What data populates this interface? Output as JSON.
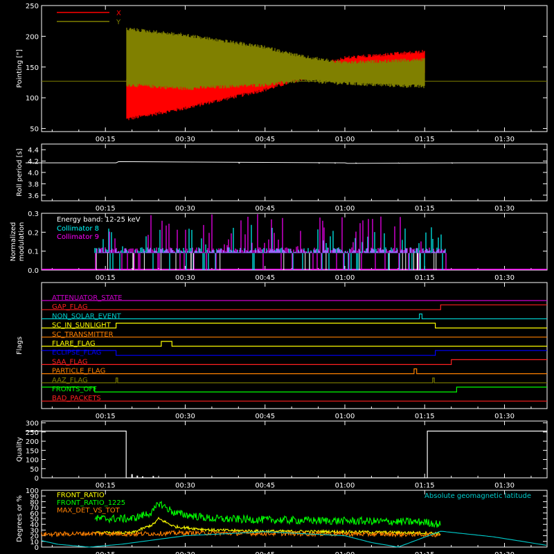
{
  "chart_data": [
    {
      "type": "line",
      "ylabel": "Pointing [\"]",
      "yticks": [
        "50",
        "100",
        "150",
        "200",
        "250"
      ],
      "ylim": [
        45,
        250
      ],
      "xticks": [
        "00:15",
        "00:30",
        "00:45",
        "01:00",
        "01:15",
        "01:30"
      ],
      "legend": [
        {
          "name": "X",
          "color": "#ff0000"
        },
        {
          "name": "Y",
          "color": "#808000"
        }
      ],
      "reference_level": 127,
      "active_range": [
        "00:19",
        "01:15"
      ],
      "series": [
        {
          "name": "X",
          "color": "#ff0000",
          "envelope_min": [
            [
              19,
              62
            ],
            [
              30,
              80
            ],
            [
              45,
              110
            ],
            [
              52,
              128
            ],
            [
              60,
              132
            ],
            [
              75,
              135
            ]
          ],
          "envelope_max": [
            [
              19,
              132
            ],
            [
              30,
              130
            ],
            [
              45,
              140
            ],
            [
              52,
              148
            ],
            [
              60,
              168
            ],
            [
              75,
              178
            ]
          ]
        },
        {
          "name": "Y",
          "color": "#808000",
          "envelope_min": [
            [
              19,
              118
            ],
            [
              30,
              112
            ],
            [
              45,
              118
            ],
            [
              52,
              125
            ],
            [
              60,
              120
            ],
            [
              75,
              115
            ]
          ],
          "envelope_max": [
            [
              19,
              215
            ],
            [
              30,
              205
            ],
            [
              45,
              185
            ],
            [
              52,
              170
            ],
            [
              60,
              160
            ],
            [
              75,
              165
            ]
          ]
        }
      ]
    },
    {
      "type": "line",
      "ylabel": "Roll period [s]",
      "yticks": [
        "3.6",
        "3.8",
        "4.0",
        "4.2",
        "4.4"
      ],
      "ylim": [
        3.5,
        4.5
      ],
      "xticks": [
        "00:15",
        "00:30",
        "00:45",
        "01:00",
        "01:15",
        "01:30"
      ],
      "series": [
        {
          "name": "",
          "color": "#ffffff",
          "x": [
            0,
            17,
            17.5,
            60,
            60.5,
            82,
            98
          ],
          "y": [
            4.17,
            4.17,
            4.19,
            4.17,
            4.16,
            4.17,
            4.17
          ]
        }
      ]
    },
    {
      "type": "bar",
      "ylabel": "Normalized modulation",
      "yticks": [
        "0.0",
        "0.1",
        "0.2",
        "0.3"
      ],
      "ylim": [
        0,
        0.3
      ],
      "xticks": [
        "00:15",
        "00:30",
        "00:45",
        "01:00",
        "01:15",
        "01:30"
      ],
      "annotations": [
        "Energy band: 12-25 keV"
      ],
      "legend": [
        {
          "name": "Collimator 8",
          "color": "#00ffff"
        },
        {
          "name": "Collimator 9",
          "color": "#ff00ff"
        }
      ],
      "series": [
        {
          "name": "Collimator 8",
          "color": "#00ffff",
          "active_range": [
            "00:13",
            "01:19"
          ],
          "baseline": 0.09,
          "peak_max": 0.24
        },
        {
          "name": "Collimator 9",
          "color": "#ff00ff",
          "active_range": [
            "00:13",
            "01:19"
          ],
          "baseline": 0.09,
          "peak_max": 0.3
        }
      ]
    },
    {
      "type": "line",
      "ylabel": "Flags",
      "xticks": [
        "00:15",
        "00:30",
        "00:45",
        "01:00",
        "01:15",
        "01:30"
      ],
      "flags": [
        {
          "label": "ATTENUATOR_STATE",
          "color": "#cc00cc",
          "segments": [
            [
              0,
              98,
              0
            ]
          ]
        },
        {
          "label": "GAP_FLAG",
          "color": "#ff2020",
          "segments": [
            [
              0,
              78,
              0
            ],
            [
              78,
              98,
              1
            ]
          ]
        },
        {
          "label": "NON_SOLAR_EVENT",
          "color": "#00cccc",
          "segments": [
            [
              0,
              74,
              0
            ],
            [
              74,
              74.5,
              1
            ],
            [
              74.5,
              98,
              0
            ]
          ]
        },
        {
          "label": "SC_IN_SUNLIGHT",
          "color": "#ffff00",
          "segments": [
            [
              0,
              17,
              0
            ],
            [
              17,
              77,
              1
            ],
            [
              77,
              98,
              0
            ]
          ]
        },
        {
          "label": "SC_TRANSMITTER",
          "color": "#ff8000",
          "segments": [
            [
              0,
              98,
              0
            ]
          ]
        },
        {
          "label": "FLARE_FLAG",
          "color": "#ffff00",
          "segments": [
            [
              0,
              25.5,
              0
            ],
            [
              25.5,
              27.5,
              1
            ],
            [
              27.5,
              98,
              0
            ]
          ]
        },
        {
          "label": "ECLIPSE_FLAG",
          "color": "#0000ff",
          "segments": [
            [
              0,
              17,
              1
            ],
            [
              17,
              77,
              0
            ],
            [
              77,
              98,
              1
            ]
          ]
        },
        {
          "label": "SAA_FLAG",
          "color": "#ff2020",
          "segments": [
            [
              0,
              80,
              0
            ],
            [
              80,
              98,
              1
            ]
          ]
        },
        {
          "label": "PARTICLE_FLAG",
          "color": "#ff8000",
          "segments": [
            [
              0,
              73,
              0
            ],
            [
              73,
              73.5,
              1
            ],
            [
              73.5,
              98,
              0
            ]
          ]
        },
        {
          "label": "AAZ_FLAG",
          "color": "#808000",
          "segments": [
            [
              0,
              17,
              0
            ],
            [
              17,
              17.3,
              1
            ],
            [
              17.3,
              76.5,
              0
            ],
            [
              76.5,
              76.8,
              1
            ],
            [
              76.8,
              98,
              0
            ]
          ]
        },
        {
          "label": "FRONTS_OFF",
          "color": "#00ff00",
          "segments": [
            [
              0,
              13,
              1
            ],
            [
              13,
              81,
              0
            ],
            [
              81,
              98,
              1
            ]
          ]
        },
        {
          "label": "BAD_PACKETS",
          "color": "#ff2020",
          "segments": [
            [
              0,
              98,
              0
            ]
          ]
        }
      ]
    },
    {
      "type": "line",
      "ylabel": "Quality",
      "yticks": [
        "0",
        "50",
        "100",
        "150",
        "200",
        "250",
        "300"
      ],
      "ylim": [
        0,
        310
      ],
      "xticks": [
        "00:15",
        "00:30",
        "00:45",
        "01:00",
        "01:15",
        "01:30"
      ],
      "series": [
        {
          "name": "",
          "color": "#ffffff",
          "x": [
            0,
            18.9,
            18.9,
            75.5,
            75.5,
            98
          ],
          "y": [
            255,
            255,
            0,
            0,
            255,
            255
          ]
        }
      ]
    },
    {
      "type": "line",
      "ylabel": "Degrees or %",
      "yticks": [
        "0",
        "10",
        "20",
        "30",
        "40",
        "50",
        "60",
        "70",
        "80",
        "90",
        "100"
      ],
      "ylim": [
        0,
        100
      ],
      "xticks": [
        "00:15",
        "00:30",
        "00:45",
        "01:00",
        "01:15",
        "01:30"
      ],
      "legend": [
        {
          "name": "FRONT_RATIO",
          "color": "#ffff00"
        },
        {
          "name": "FRONT_RATIO_1225",
          "color": "#00ff00"
        },
        {
          "name": "MAX_DET_VS_TOT",
          "color": "#ff8000"
        },
        {
          "name": "Absolute geomagnetic latitude",
          "color": "#00cccc"
        }
      ],
      "series": [
        {
          "name": "FRONT_RATIO",
          "color": "#ffff00",
          "x": [
            13,
            20,
            24,
            25,
            28,
            35,
            45,
            60,
            75,
            78
          ],
          "y": [
            25,
            25,
            40,
            50,
            36,
            30,
            28,
            27,
            25,
            24
          ]
        },
        {
          "name": "FRONT_RATIO_1225",
          "color": "#00ff00",
          "x": [
            13,
            20,
            24,
            25,
            28,
            35,
            45,
            60,
            75,
            78
          ],
          "y": [
            50,
            50,
            62,
            78,
            60,
            50,
            48,
            46,
            44,
            40
          ]
        },
        {
          "name": "MAX_DET_VS_TOT",
          "color": "#ff8000",
          "x": [
            0,
            13,
            20,
            30,
            45,
            60,
            78
          ],
          "y": [
            22,
            24,
            23,
            25,
            24,
            23,
            22
          ]
        },
        {
          "name": "Absolute geomagnetic latitude",
          "color": "#00cccc",
          "x": [
            0,
            6,
            12,
            18,
            30,
            45,
            60,
            65,
            70,
            78,
            88,
            98
          ],
          "y": [
            18,
            5,
            0,
            5,
            20,
            27,
            20,
            8,
            0,
            28,
            18,
            3
          ]
        }
      ]
    }
  ]
}
